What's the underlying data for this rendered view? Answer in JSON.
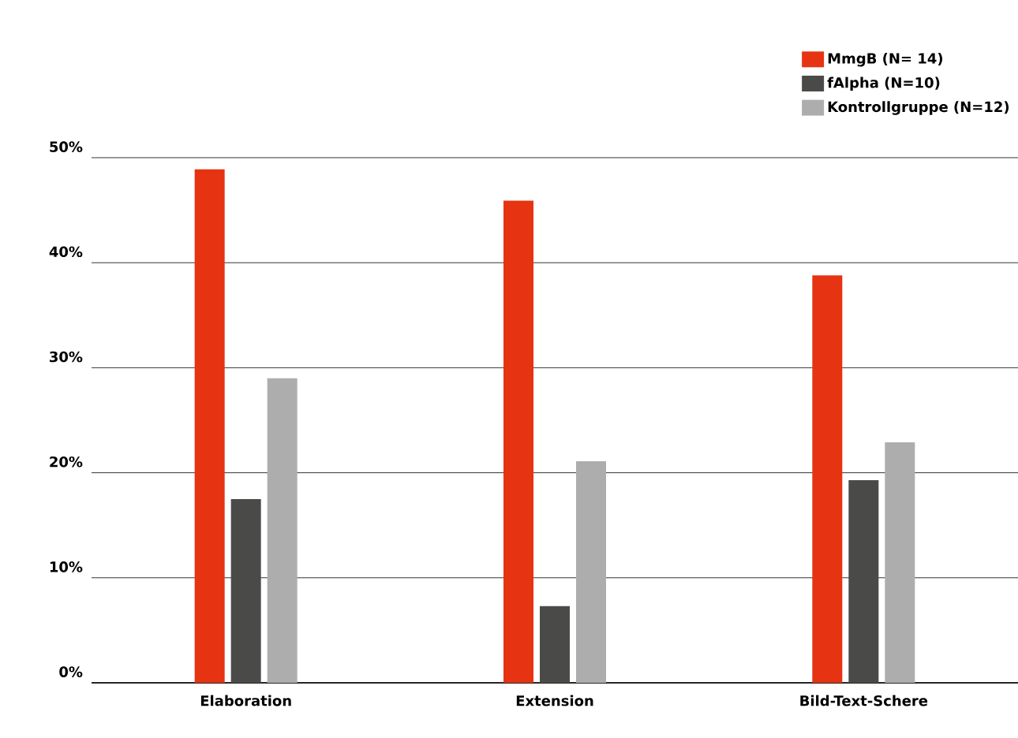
{
  "chart_data": {
    "type": "bar",
    "categories": [
      "Elaboration",
      "Extension",
      "Bild-Text-Schere"
    ],
    "series": [
      {
        "name": "MmgB (N= 14)",
        "color": "#e63312",
        "values": [
          48.9,
          45.9,
          38.8
        ]
      },
      {
        "name": "fAlpha (N=10)",
        "color": "#4a4a49",
        "values": [
          17.5,
          7.3,
          19.3
        ]
      },
      {
        "name": "Kontrollgruppe (N=12)",
        "color": "#adadad",
        "values": [
          29,
          21.1,
          22.9
        ]
      }
    ],
    "ylim": [
      0,
      50
    ],
    "yticks": [
      {
        "value": 0,
        "label": "0%"
      },
      {
        "value": 10,
        "label": "10%"
      },
      {
        "value": 20,
        "label": "20%"
      },
      {
        "value": 30,
        "label": "30%"
      },
      {
        "value": 40,
        "label": "40%"
      },
      {
        "value": 50,
        "label": "50%"
      }
    ],
    "grid": "y",
    "legend": "top right"
  }
}
